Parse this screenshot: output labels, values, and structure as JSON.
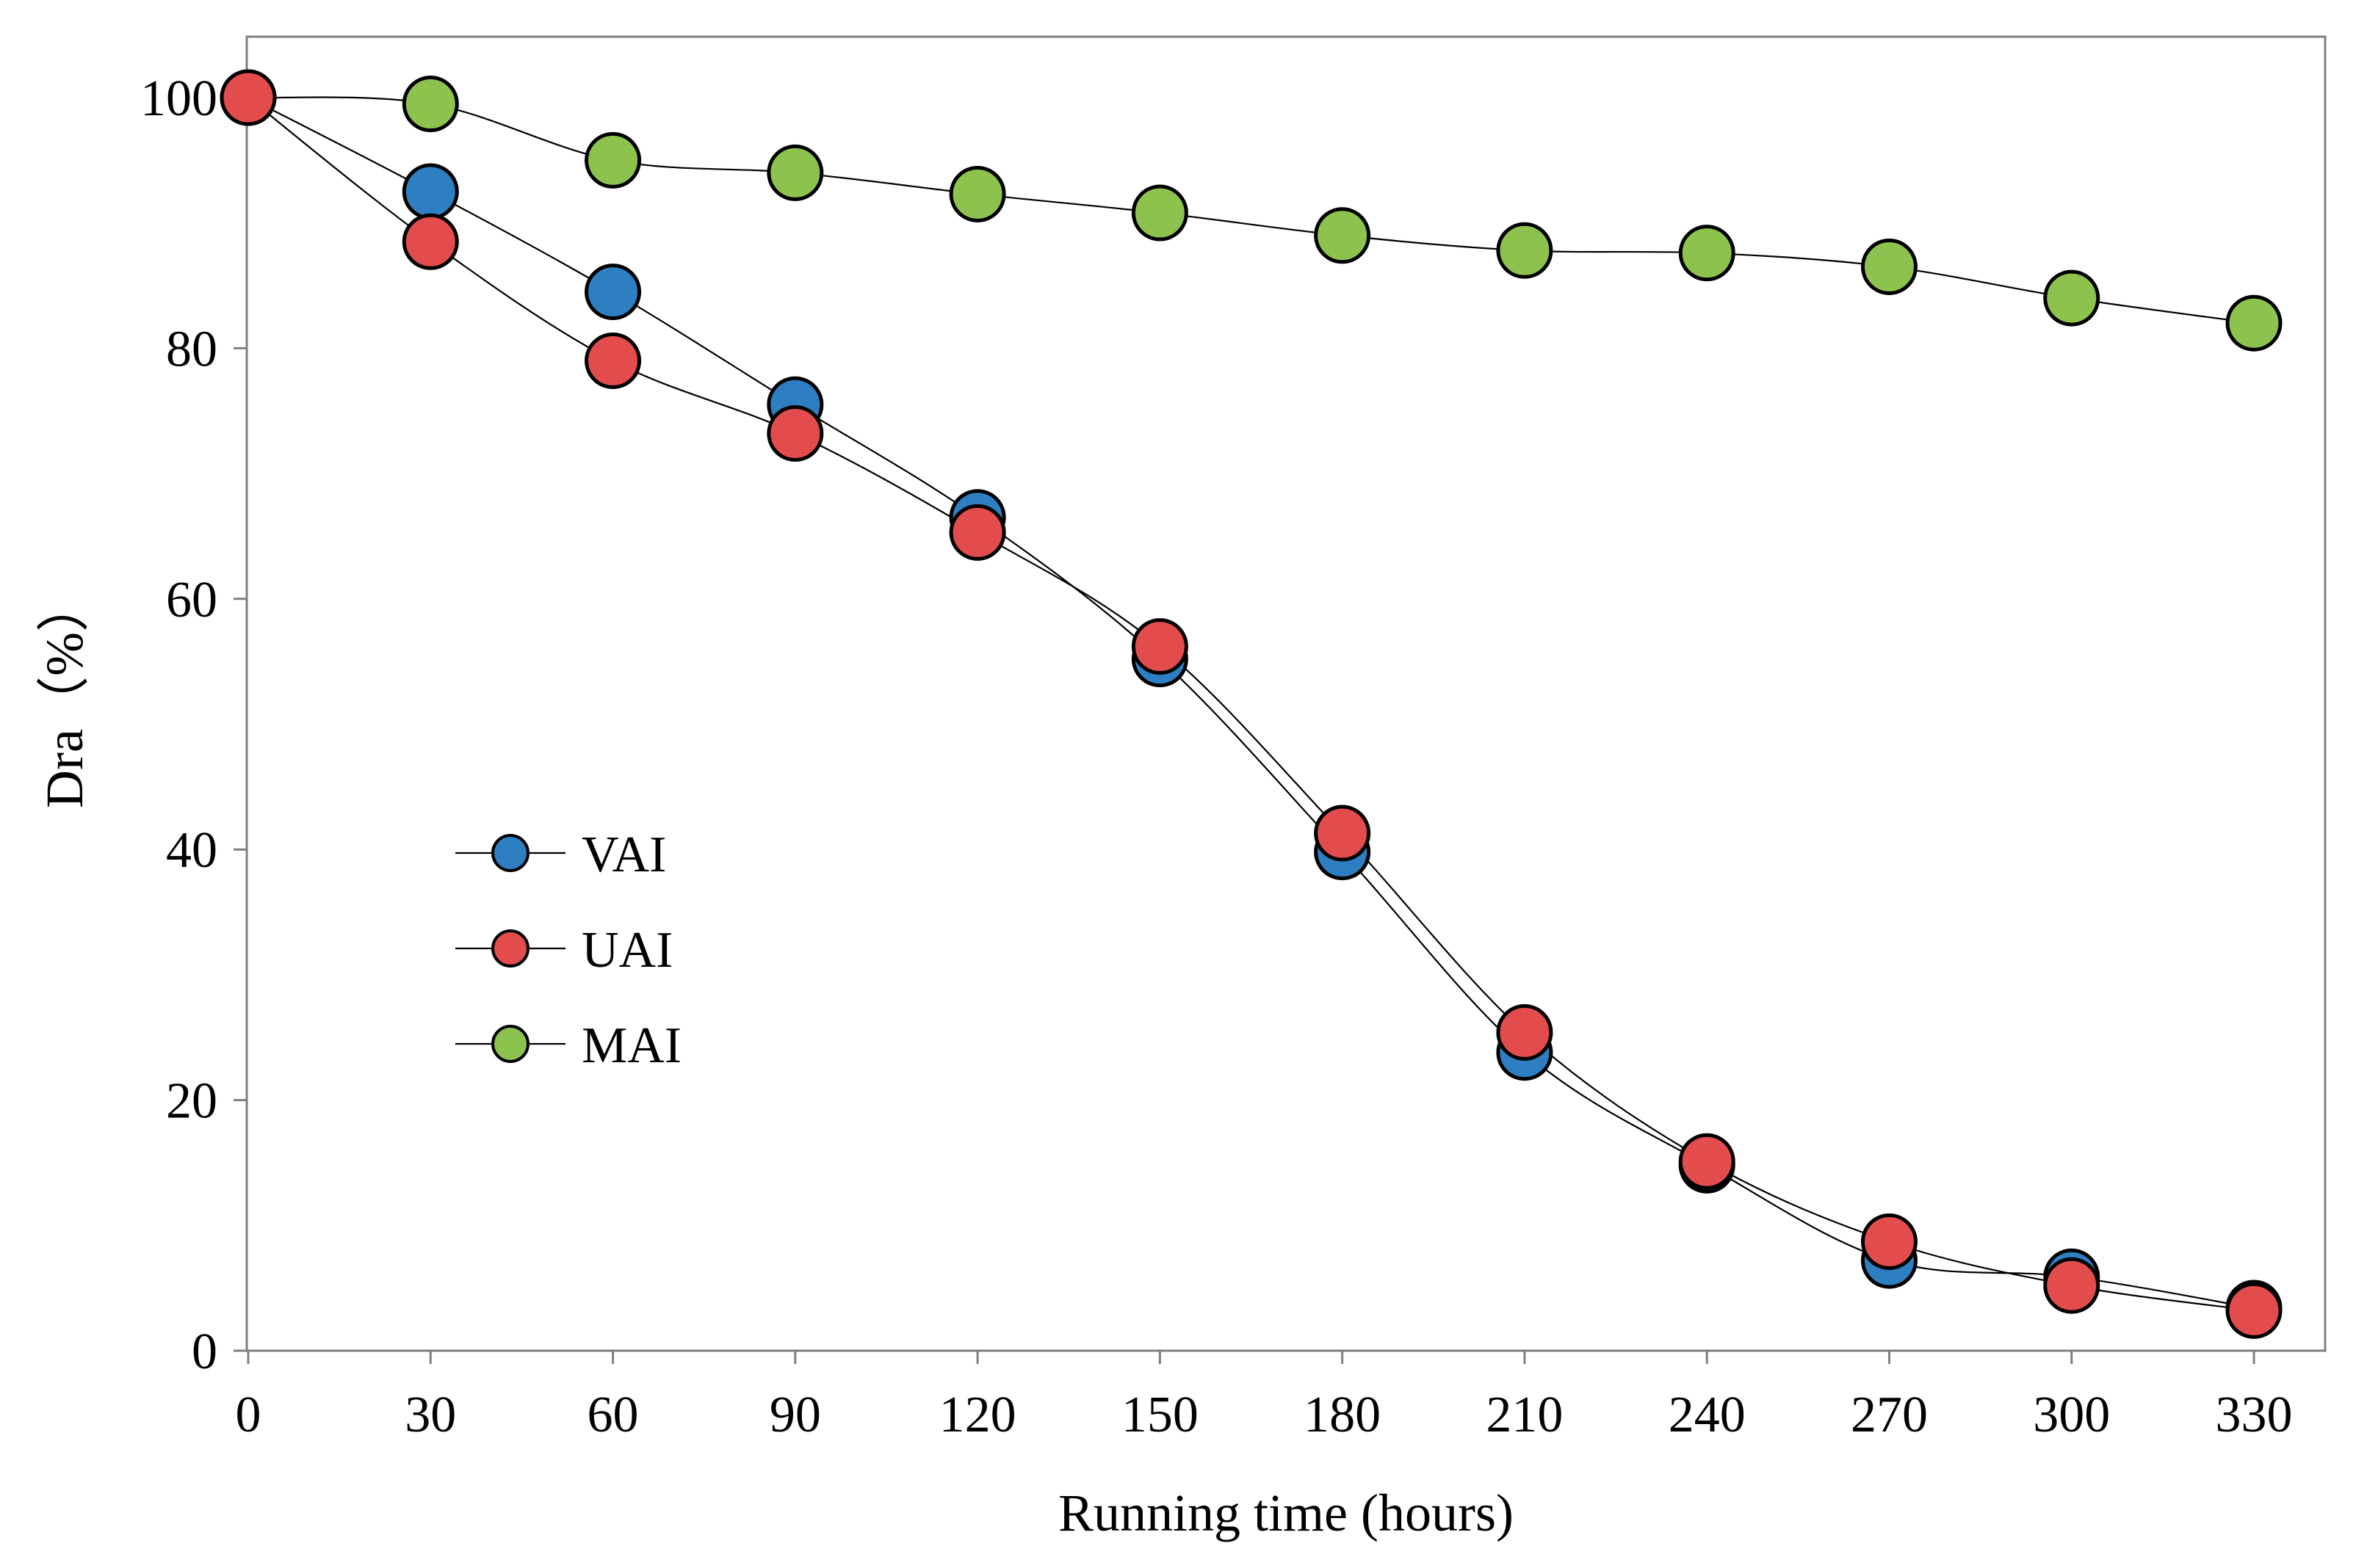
{
  "chart_data": {
    "type": "line",
    "title": "",
    "xlabel": "Running time (hours)",
    "ylabel": "Dra（%）",
    "x": [
      0,
      30,
      60,
      90,
      120,
      150,
      180,
      210,
      240,
      270,
      300,
      330
    ],
    "xlim": [
      0,
      340
    ],
    "ylim": [
      0,
      105
    ],
    "xticks": [
      0,
      30,
      60,
      90,
      120,
      150,
      180,
      210,
      240,
      270,
      300,
      330
    ],
    "yticks": [
      0,
      20,
      40,
      60,
      80,
      100
    ],
    "grid": false,
    "legend": "middle-left",
    "series": [
      {
        "name": "VAI",
        "color": "#2e7fc1",
        "values": [
          100,
          92.5,
          84.5,
          75.5,
          66.5,
          55.2,
          39.8,
          23.8,
          14.8,
          7.2,
          5.9,
          3.4
        ]
      },
      {
        "name": "UAI",
        "color": "#e34c4c",
        "values": [
          100,
          88.5,
          79,
          73.2,
          65.3,
          56.2,
          41.3,
          25.4,
          15.1,
          8.7,
          5.2,
          3.2
        ]
      },
      {
        "name": "MAI",
        "color": "#8ec24f",
        "values": [
          100,
          99.5,
          95,
          94,
          92.3,
          90.8,
          89,
          87.8,
          87.6,
          86.5,
          84,
          82
        ]
      }
    ]
  }
}
